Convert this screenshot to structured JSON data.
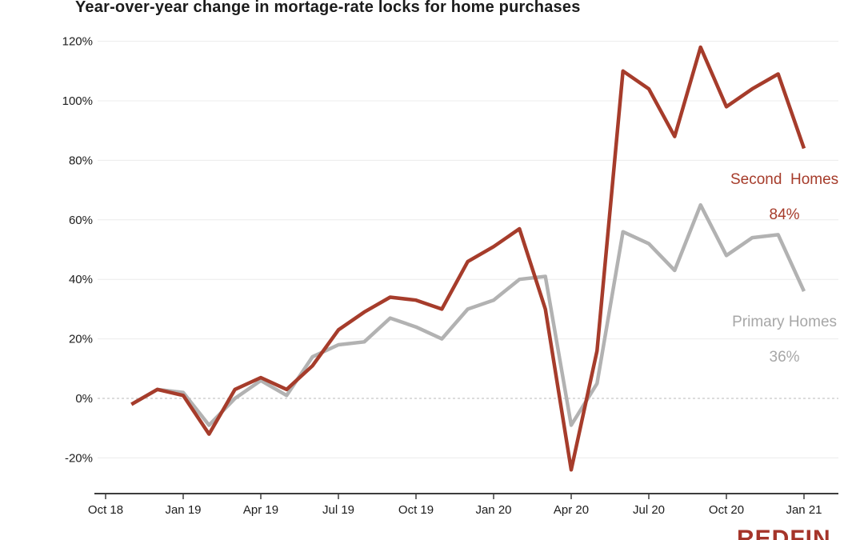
{
  "title": "Year-over-year change in mortage-rate locks for home purchases",
  "branding": {
    "logo_text": "REDFIN"
  },
  "chart_data": {
    "type": "line",
    "title": "Year-over-year change in mortage-rate locks for home purchases",
    "x": [
      "Nov 18",
      "Dec 18",
      "Jan 19",
      "Feb 19",
      "Mar 19",
      "Apr 19",
      "May 19",
      "Jun 19",
      "Jul 19",
      "Aug 19",
      "Sep 19",
      "Oct 19",
      "Nov 19",
      "Dec 19",
      "Jan 20",
      "Feb 20",
      "Mar 20",
      "Apr 20",
      "May 20",
      "Jun 20",
      "Jul 20",
      "Aug 20",
      "Sep 20",
      "Oct 20",
      "Nov 20",
      "Dec 20",
      "Jan 21"
    ],
    "x_axis_tick_labels": [
      "Oct 18",
      "Jan 19",
      "Apr 19",
      "Jul 19",
      "Oct 19",
      "Jan 20",
      "Apr 20",
      "Jul 20",
      "Oct 20",
      "Jan 21"
    ],
    "y_axis_ticks": [
      {
        "value": 120,
        "label": "120%"
      },
      {
        "value": 100,
        "label": "100%"
      },
      {
        "value": 80,
        "label": "80%"
      },
      {
        "value": 60,
        "label": "60%"
      },
      {
        "value": 40,
        "label": "40%"
      },
      {
        "value": 20,
        "label": "20%"
      },
      {
        "value": 0,
        "label": "0%"
      },
      {
        "value": -20,
        "label": "-20%"
      }
    ],
    "ylim": [
      -20,
      120
    ],
    "grid": true,
    "zero_line": "dashed",
    "legend_position": "inline-right",
    "series": [
      {
        "name": "Second Homes",
        "color": "#A63C2B",
        "inline_label": "Second  Homes",
        "inline_value_label": "84%",
        "end_value": 84,
        "values": [
          -2,
          3,
          1,
          -12,
          3,
          7,
          3,
          11,
          23,
          29,
          34,
          33,
          30,
          46,
          51,
          57,
          30,
          -24,
          16,
          110,
          104,
          88,
          118,
          98,
          104,
          109,
          84
        ]
      },
      {
        "name": "Primary Homes",
        "color": "#B2B2B2",
        "inline_label": "Primary Homes",
        "inline_value_label": "36%",
        "end_value": 36,
        "values": [
          -2,
          3,
          2,
          -9,
          0,
          6,
          1,
          14,
          18,
          19,
          27,
          24,
          20,
          30,
          33,
          40,
          41,
          -9,
          5,
          56,
          52,
          43,
          65,
          48,
          54,
          55,
          36
        ]
      }
    ]
  }
}
